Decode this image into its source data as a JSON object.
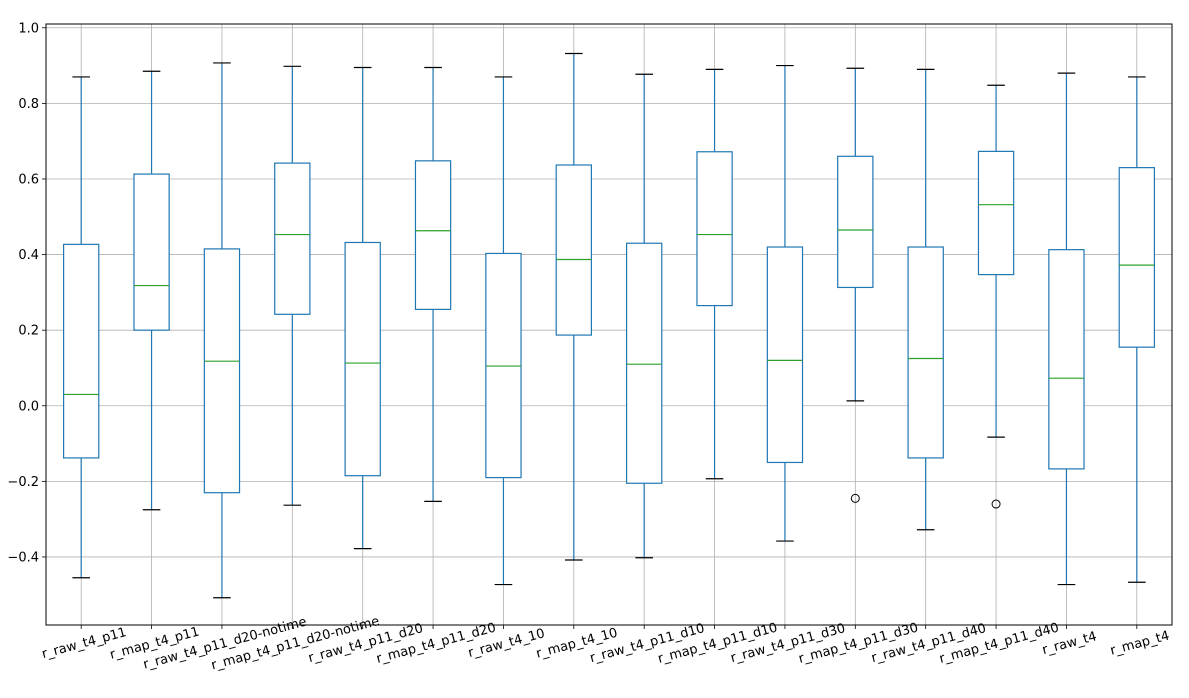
{
  "chart_data": {
    "type": "box",
    "title": "",
    "xlabel": "",
    "ylabel": "",
    "ylim": [
      -0.58,
      1.01
    ],
    "yticks": [
      -0.4,
      -0.2,
      0.0,
      0.2,
      0.4,
      0.6,
      0.8,
      1.0
    ],
    "ytick_labels": [
      "−0.4",
      "−0.2",
      "0.0",
      "0.2",
      "0.4",
      "0.6",
      "0.8",
      "1.0"
    ],
    "grid": true,
    "box_color": "#1f77b4",
    "median_color": "#2ca02c",
    "categories": [
      "r_raw_t4_p11",
      "r_map_t4_p11",
      "r_raw_t4_p11_d20-notime",
      "r_map_t4_p11_d20-notime",
      "r_raw_t4_p11_d20",
      "r_map_t4_p11_d20",
      "r_raw_t4_10",
      "r_map_t4_10",
      "r_raw_t4_p11_d10",
      "r_map_t4_p11_d10",
      "r_raw_t4_p11_d30",
      "r_map_t4_p11_d30",
      "r_raw_t4_p11_d40",
      "r_map_t4_p11_d40",
      "r_raw_t4",
      "r_map_t4"
    ],
    "boxes": [
      {
        "whislo": -0.455,
        "q1": -0.138,
        "med": 0.03,
        "q3": 0.427,
        "whishi": 0.87,
        "fliers": []
      },
      {
        "whislo": -0.275,
        "q1": 0.2,
        "med": 0.318,
        "q3": 0.613,
        "whishi": 0.885,
        "fliers": []
      },
      {
        "whislo": -0.508,
        "q1": -0.23,
        "med": 0.118,
        "q3": 0.415,
        "whishi": 0.907,
        "fliers": []
      },
      {
        "whislo": -0.263,
        "q1": 0.242,
        "med": 0.453,
        "q3": 0.642,
        "whishi": 0.898,
        "fliers": []
      },
      {
        "whislo": -0.378,
        "q1": -0.185,
        "med": 0.113,
        "q3": 0.432,
        "whishi": 0.895,
        "fliers": []
      },
      {
        "whislo": -0.253,
        "q1": 0.255,
        "med": 0.463,
        "q3": 0.648,
        "whishi": 0.895,
        "fliers": []
      },
      {
        "whislo": -0.473,
        "q1": -0.19,
        "med": 0.105,
        "q3": 0.403,
        "whishi": 0.87,
        "fliers": []
      },
      {
        "whislo": -0.408,
        "q1": 0.187,
        "med": 0.387,
        "q3": 0.637,
        "whishi": 0.932,
        "fliers": []
      },
      {
        "whislo": -0.402,
        "q1": -0.205,
        "med": 0.11,
        "q3": 0.43,
        "whishi": 0.877,
        "fliers": []
      },
      {
        "whislo": -0.193,
        "q1": 0.265,
        "med": 0.453,
        "q3": 0.672,
        "whishi": 0.89,
        "fliers": []
      },
      {
        "whislo": -0.358,
        "q1": -0.15,
        "med": 0.12,
        "q3": 0.42,
        "whishi": 0.9,
        "fliers": []
      },
      {
        "whislo": 0.013,
        "q1": 0.313,
        "med": 0.465,
        "q3": 0.66,
        "whishi": 0.893,
        "fliers": [
          -0.245
        ]
      },
      {
        "whislo": -0.328,
        "q1": -0.138,
        "med": 0.125,
        "q3": 0.42,
        "whishi": 0.89,
        "fliers": []
      },
      {
        "whislo": -0.083,
        "q1": 0.347,
        "med": 0.532,
        "q3": 0.673,
        "whishi": 0.848,
        "fliers": [
          -0.26
        ]
      },
      {
        "whislo": -0.473,
        "q1": -0.167,
        "med": 0.073,
        "q3": 0.413,
        "whishi": 0.88,
        "fliers": []
      },
      {
        "whislo": -0.467,
        "q1": 0.155,
        "med": 0.372,
        "q3": 0.63,
        "whishi": 0.87,
        "fliers": []
      }
    ]
  }
}
